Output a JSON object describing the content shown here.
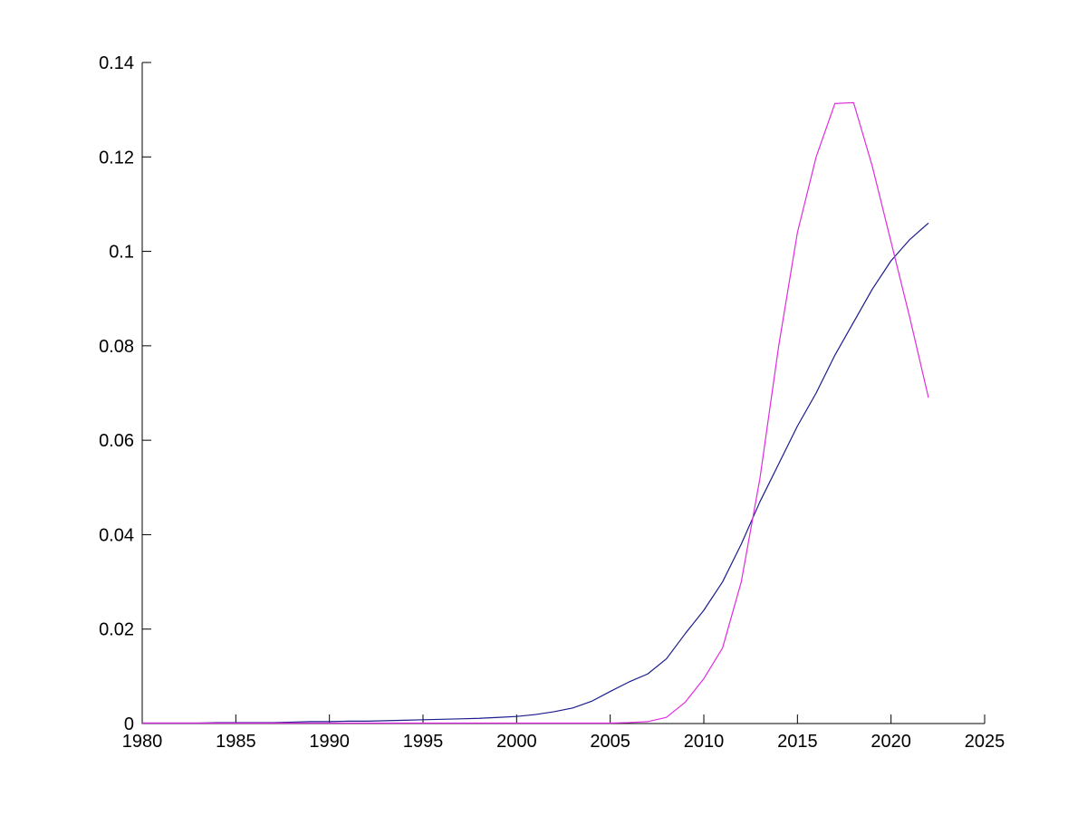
{
  "figure": {
    "background_color": "#ffffff",
    "axis_color": "#000000",
    "tick_label_color": "#000000",
    "title": "",
    "legend": "none"
  },
  "chart_data": {
    "type": "line",
    "title": "",
    "xlabel": "",
    "ylabel": "",
    "grid": false,
    "box_style": "left-and-bottom-spines-only-ticks-inward",
    "xlim": [
      1980,
      2025
    ],
    "ylim": [
      0,
      0.14
    ],
    "xticks": [
      1980,
      1985,
      1990,
      1995,
      2000,
      2005,
      2010,
      2015,
      2020,
      2025
    ],
    "xtick_labels": [
      "1980",
      "1985",
      "1990",
      "1995",
      "2000",
      "2005",
      "2010",
      "2015",
      "2020",
      "2025"
    ],
    "yticks": [
      0,
      0.02,
      0.04,
      0.06,
      0.08,
      0.1,
      0.12,
      0.14
    ],
    "ytick_labels": [
      "0",
      "0.02",
      "0.04",
      "0.06",
      "0.08",
      "0.1",
      "0.12",
      "0.14"
    ],
    "x": [
      1980,
      1981,
      1982,
      1983,
      1984,
      1985,
      1986,
      1987,
      1988,
      1989,
      1990,
      1991,
      1992,
      1993,
      1994,
      1995,
      1996,
      1997,
      1998,
      1999,
      2000,
      2001,
      2002,
      2003,
      2004,
      2005,
      2006,
      2007,
      2008,
      2009,
      2010,
      2011,
      2012,
      2013,
      2014,
      2015,
      2016,
      2017,
      2018,
      2019,
      2020,
      2021,
      2022
    ],
    "series": [
      {
        "name": "dark-blue-smooth-s-curve",
        "color": "#1b1b8c",
        "values": [
          0.0001,
          0.0001,
          0.0001,
          0.0001,
          0.0002,
          0.0002,
          0.0002,
          0.0002,
          0.0003,
          0.0004,
          0.0004,
          0.0005,
          0.0005,
          0.0006,
          0.0007,
          0.0008,
          0.0009,
          0.001,
          0.0011,
          0.0013,
          0.0015,
          0.0019,
          0.0025,
          0.0033,
          0.0047,
          0.0068,
          0.0088,
          0.0105,
          0.0137,
          0.019,
          0.024,
          0.03,
          0.038,
          0.047,
          0.055,
          0.063,
          0.07,
          0.078,
          0.085,
          0.092,
          0.098,
          0.1025,
          0.106
        ]
      },
      {
        "name": "magenta-peaked-curve",
        "color": "#e02ce0",
        "values": [
          0.0001,
          0.0001,
          0.0001,
          0.0001,
          0.0001,
          0.0001,
          0.0001,
          0.0001,
          0.0001,
          0.0001,
          0.0001,
          0.0001,
          0.0001,
          0.0001,
          0.0001,
          0.0001,
          0.0001,
          0.0001,
          0.0001,
          0.0001,
          0.0001,
          0.0001,
          0.0001,
          0.0001,
          0.0001,
          0.0001,
          0.0002,
          0.0004,
          0.0013,
          0.0045,
          0.0095,
          0.016,
          0.03,
          0.052,
          0.08,
          0.104,
          0.12,
          0.1313,
          0.1315,
          0.118,
          0.102,
          0.086,
          0.069
        ]
      }
    ],
    "annotations": {
      "blue_curve_end_value_2022": 0.106,
      "magenta_peak_value": 0.1315,
      "magenta_peak_years": "2017-2018",
      "curves_cross_lower": "~2012.7 at ~0.044",
      "curves_cross_upper": "~2020.2 at ~0.0995"
    }
  }
}
